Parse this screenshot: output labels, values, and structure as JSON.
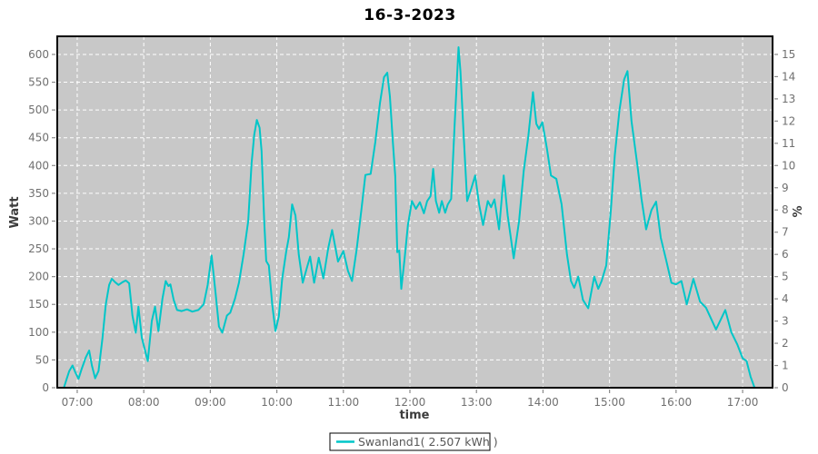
{
  "title": "16-3-2023",
  "legend": {
    "label": "Swanland1( 2.507 kWh )",
    "line_color": "#00c6c8"
  },
  "chart_data": {
    "type": "line",
    "title": "16-3-2023",
    "xlabel": "time",
    "ylabel_left": "Watt",
    "ylabel_right": "%",
    "background": "#c8c8c8",
    "grid": true,
    "grid_color": "#ffffff",
    "line_color": "#00c6c8",
    "border_color": "#000000",
    "legend_position": "bottom-center",
    "x_domain": [
      6.7,
      17.45
    ],
    "y_domain_watt": [
      0,
      632.6
    ],
    "y_domain_pct": [
      0,
      15.815
    ],
    "x_ticks": [
      {
        "t": 7,
        "label": "07:00"
      },
      {
        "t": 8,
        "label": "08:00"
      },
      {
        "t": 9,
        "label": "09:00"
      },
      {
        "t": 10,
        "label": "10:00"
      },
      {
        "t": 11,
        "label": "11:00"
      },
      {
        "t": 12,
        "label": "12:00"
      },
      {
        "t": 13,
        "label": "13:00"
      },
      {
        "t": 14,
        "label": "14:00"
      },
      {
        "t": 15,
        "label": "15:00"
      },
      {
        "t": 16,
        "label": "16:00"
      },
      {
        "t": 17,
        "label": "17:00"
      }
    ],
    "y_ticks_watt": [
      0,
      50,
      100,
      150,
      200,
      250,
      300,
      350,
      400,
      450,
      500,
      550,
      600
    ],
    "y_ticks_pct": [
      0,
      1,
      2,
      3,
      4,
      5,
      6,
      7,
      8,
      9,
      10,
      11,
      12,
      13,
      14,
      15
    ],
    "series": [
      {
        "name": "Swanland1( 2.507 kWh )",
        "color": "#00c6c8",
        "energy_kwh": 2.507,
        "points": [
          [
            6.8,
            0
          ],
          [
            6.84,
            15
          ],
          [
            6.88,
            30
          ],
          [
            6.93,
            40
          ],
          [
            6.97,
            28
          ],
          [
            7.02,
            16
          ],
          [
            7.07,
            35
          ],
          [
            7.13,
            55
          ],
          [
            7.18,
            67
          ],
          [
            7.22,
            40
          ],
          [
            7.27,
            17
          ],
          [
            7.32,
            30
          ],
          [
            7.38,
            90
          ],
          [
            7.43,
            150
          ],
          [
            7.48,
            185
          ],
          [
            7.52,
            196
          ],
          [
            7.57,
            190
          ],
          [
            7.62,
            185
          ],
          [
            7.68,
            190
          ],
          [
            7.73,
            193
          ],
          [
            7.78,
            188
          ],
          [
            7.83,
            130
          ],
          [
            7.88,
            99
          ],
          [
            7.92,
            146
          ],
          [
            7.97,
            90
          ],
          [
            8.06,
            48
          ],
          [
            8.12,
            120
          ],
          [
            8.17,
            146
          ],
          [
            8.22,
            102
          ],
          [
            8.28,
            160
          ],
          [
            8.33,
            192
          ],
          [
            8.37,
            183
          ],
          [
            8.4,
            186
          ],
          [
            8.45,
            158
          ],
          [
            8.5,
            140
          ],
          [
            8.57,
            138
          ],
          [
            8.65,
            141
          ],
          [
            8.73,
            137
          ],
          [
            8.82,
            140
          ],
          [
            8.9,
            150
          ],
          [
            8.96,
            185
          ],
          [
            9.02,
            238
          ],
          [
            9.08,
            170
          ],
          [
            9.13,
            110
          ],
          [
            9.18,
            99
          ],
          [
            9.25,
            130
          ],
          [
            9.3,
            135
          ],
          [
            9.37,
            160
          ],
          [
            9.43,
            189
          ],
          [
            9.5,
            240
          ],
          [
            9.57,
            300
          ],
          [
            9.62,
            404
          ],
          [
            9.66,
            455
          ],
          [
            9.7,
            482
          ],
          [
            9.74,
            468
          ],
          [
            9.77,
            426
          ],
          [
            9.81,
            300
          ],
          [
            9.84,
            228
          ],
          [
            9.88,
            220
          ],
          [
            9.93,
            150
          ],
          [
            9.98,
            102
          ],
          [
            10.03,
            129
          ],
          [
            10.08,
            195
          ],
          [
            10.14,
            244
          ],
          [
            10.18,
            271
          ],
          [
            10.23,
            330
          ],
          [
            10.28,
            310
          ],
          [
            10.33,
            240
          ],
          [
            10.39,
            189
          ],
          [
            10.45,
            215
          ],
          [
            10.5,
            236
          ],
          [
            10.56,
            189
          ],
          [
            10.63,
            234
          ],
          [
            10.7,
            197
          ],
          [
            10.77,
            250
          ],
          [
            10.83,
            284
          ],
          [
            10.92,
            227
          ],
          [
            11.0,
            246
          ],
          [
            11.07,
            210
          ],
          [
            11.13,
            192
          ],
          [
            11.2,
            249
          ],
          [
            11.27,
            320
          ],
          [
            11.33,
            383
          ],
          [
            11.41,
            385
          ],
          [
            11.48,
            442
          ],
          [
            11.55,
            513
          ],
          [
            11.61,
            559
          ],
          [
            11.66,
            567
          ],
          [
            11.7,
            524
          ],
          [
            11.74,
            448
          ],
          [
            11.78,
            380
          ],
          [
            11.81,
            244
          ],
          [
            11.84,
            247
          ],
          [
            11.87,
            178
          ],
          [
            11.92,
            233
          ],
          [
            11.97,
            293
          ],
          [
            12.03,
            336
          ],
          [
            12.09,
            322
          ],
          [
            12.15,
            334
          ],
          [
            12.21,
            314
          ],
          [
            12.26,
            336
          ],
          [
            12.31,
            345
          ],
          [
            12.35,
            394
          ],
          [
            12.39,
            336
          ],
          [
            12.44,
            315
          ],
          [
            12.48,
            336
          ],
          [
            12.53,
            315
          ],
          [
            12.57,
            330
          ],
          [
            12.62,
            340
          ],
          [
            12.67,
            470
          ],
          [
            12.73,
            613
          ],
          [
            12.76,
            570
          ],
          [
            12.81,
            450
          ],
          [
            12.86,
            336
          ],
          [
            12.92,
            358
          ],
          [
            12.98,
            382
          ],
          [
            13.04,
            330
          ],
          [
            13.1,
            293
          ],
          [
            13.17,
            336
          ],
          [
            13.22,
            325
          ],
          [
            13.27,
            339
          ],
          [
            13.34,
            285
          ],
          [
            13.41,
            382
          ],
          [
            13.47,
            310
          ],
          [
            13.56,
            233
          ],
          [
            13.64,
            300
          ],
          [
            13.71,
            390
          ],
          [
            13.78,
            453
          ],
          [
            13.85,
            532
          ],
          [
            13.9,
            475
          ],
          [
            13.94,
            466
          ],
          [
            13.99,
            478
          ],
          [
            14.06,
            430
          ],
          [
            14.12,
            382
          ],
          [
            14.2,
            376
          ],
          [
            14.28,
            330
          ],
          [
            14.36,
            240
          ],
          [
            14.42,
            192
          ],
          [
            14.47,
            180
          ],
          [
            14.53,
            200
          ],
          [
            14.6,
            158
          ],
          [
            14.68,
            143
          ],
          [
            14.77,
            200
          ],
          [
            14.83,
            178
          ],
          [
            14.88,
            192
          ],
          [
            14.95,
            220
          ],
          [
            15.02,
            320
          ],
          [
            15.08,
            420
          ],
          [
            15.15,
            500
          ],
          [
            15.22,
            555
          ],
          [
            15.27,
            570
          ],
          [
            15.33,
            480
          ],
          [
            15.42,
            399
          ],
          [
            15.48,
            340
          ],
          [
            15.55,
            285
          ],
          [
            15.63,
            320
          ],
          [
            15.7,
            335
          ],
          [
            15.77,
            270
          ],
          [
            15.85,
            230
          ],
          [
            15.93,
            189
          ],
          [
            16.0,
            186
          ],
          [
            16.08,
            192
          ],
          [
            16.16,
            150
          ],
          [
            16.26,
            196
          ],
          [
            16.36,
            155
          ],
          [
            16.45,
            144
          ],
          [
            16.6,
            105
          ],
          [
            16.74,
            140
          ],
          [
            16.83,
            100
          ],
          [
            16.92,
            78
          ],
          [
            17.0,
            53
          ],
          [
            17.06,
            48
          ],
          [
            17.12,
            20
          ],
          [
            17.18,
            0
          ]
        ]
      }
    ]
  }
}
